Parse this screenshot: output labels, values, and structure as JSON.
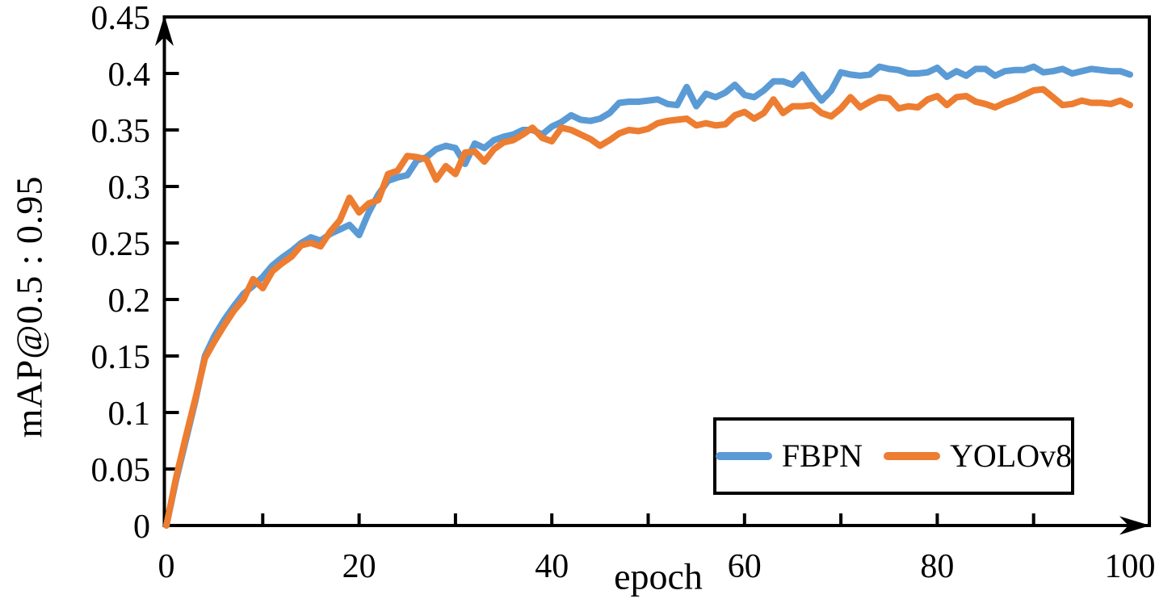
{
  "chart_data": {
    "type": "line",
    "title": "",
    "xlabel": "epoch",
    "ylabel": "mAP@0.5 : 0.95",
    "xlim": [
      0,
      100
    ],
    "ylim": [
      0,
      0.45
    ],
    "grid": false,
    "legend_position": "inside-bottom-right",
    "x_major_ticks": [
      0,
      20,
      40,
      60,
      80,
      100
    ],
    "x_major_tick_labels": [
      "0",
      "20",
      "40",
      "60",
      "80",
      "100"
    ],
    "x_minor_ticks": [
      10,
      30,
      50,
      70,
      90
    ],
    "y_ticks": [
      0,
      0.05,
      0.1,
      0.15,
      0.2,
      0.25,
      0.3,
      0.35,
      0.4,
      0.45
    ],
    "y_tick_labels": [
      "0",
      "0.05",
      "0.1",
      "0.15",
      "0.2",
      "0.25",
      "0.3",
      "0.35",
      "0.4",
      "0.45"
    ],
    "axis_color": "#000000",
    "x": [
      0,
      1,
      2,
      3,
      4,
      5,
      6,
      7,
      8,
      9,
      10,
      11,
      12,
      13,
      14,
      15,
      16,
      17,
      18,
      19,
      20,
      21,
      22,
      23,
      24,
      25,
      26,
      27,
      28,
      29,
      30,
      31,
      32,
      33,
      34,
      35,
      36,
      37,
      38,
      39,
      40,
      41,
      42,
      43,
      44,
      45,
      46,
      47,
      48,
      49,
      50,
      51,
      52,
      53,
      54,
      55,
      56,
      57,
      58,
      59,
      60,
      61,
      62,
      63,
      64,
      65,
      66,
      67,
      68,
      69,
      70,
      71,
      72,
      73,
      74,
      75,
      76,
      77,
      78,
      79,
      80,
      81,
      82,
      83,
      84,
      85,
      86,
      87,
      88,
      89,
      90,
      91,
      92,
      93,
      94,
      95,
      96,
      97,
      98,
      99,
      100
    ],
    "series": [
      {
        "name": "FBPN",
        "color": "#5B9BD5",
        "values": [
          0.0,
          0.04,
          0.075,
          0.11,
          0.15,
          0.168,
          0.182,
          0.194,
          0.205,
          0.212,
          0.22,
          0.23,
          0.237,
          0.243,
          0.25,
          0.255,
          0.252,
          0.258,
          0.262,
          0.266,
          0.257,
          0.277,
          0.293,
          0.305,
          0.308,
          0.31,
          0.323,
          0.326,
          0.333,
          0.336,
          0.334,
          0.32,
          0.338,
          0.334,
          0.341,
          0.344,
          0.346,
          0.35,
          0.35,
          0.346,
          0.353,
          0.357,
          0.363,
          0.359,
          0.358,
          0.36,
          0.365,
          0.374,
          0.375,
          0.375,
          0.376,
          0.377,
          0.373,
          0.372,
          0.388,
          0.371,
          0.382,
          0.379,
          0.383,
          0.39,
          0.381,
          0.379,
          0.385,
          0.393,
          0.393,
          0.39,
          0.399,
          0.387,
          0.376,
          0.385,
          0.401,
          0.399,
          0.398,
          0.399,
          0.406,
          0.404,
          0.403,
          0.4,
          0.4,
          0.401,
          0.405,
          0.397,
          0.402,
          0.398,
          0.404,
          0.404,
          0.398,
          0.402,
          0.403,
          0.403,
          0.406,
          0.401,
          0.402,
          0.404,
          0.4,
          0.402,
          0.404,
          0.403,
          0.402,
          0.402,
          0.399
        ]
      },
      {
        "name": "YOLOv8",
        "color": "#ED7D31",
        "values": [
          0.0,
          0.042,
          0.078,
          0.112,
          0.148,
          0.163,
          0.177,
          0.19,
          0.2,
          0.218,
          0.21,
          0.225,
          0.232,
          0.238,
          0.248,
          0.25,
          0.247,
          0.26,
          0.27,
          0.29,
          0.277,
          0.285,
          0.288,
          0.311,
          0.314,
          0.327,
          0.326,
          0.324,
          0.306,
          0.318,
          0.311,
          0.33,
          0.331,
          0.322,
          0.333,
          0.339,
          0.341,
          0.346,
          0.352,
          0.343,
          0.34,
          0.352,
          0.35,
          0.346,
          0.342,
          0.336,
          0.341,
          0.347,
          0.35,
          0.349,
          0.351,
          0.356,
          0.358,
          0.359,
          0.36,
          0.354,
          0.356,
          0.354,
          0.355,
          0.363,
          0.366,
          0.36,
          0.365,
          0.377,
          0.365,
          0.371,
          0.371,
          0.372,
          0.365,
          0.362,
          0.369,
          0.379,
          0.37,
          0.375,
          0.379,
          0.378,
          0.369,
          0.371,
          0.37,
          0.377,
          0.38,
          0.372,
          0.379,
          0.38,
          0.375,
          0.373,
          0.37,
          0.374,
          0.377,
          0.381,
          0.385,
          0.386,
          0.379,
          0.372,
          0.373,
          0.376,
          0.374,
          0.374,
          0.373,
          0.376,
          0.372
        ]
      }
    ]
  }
}
